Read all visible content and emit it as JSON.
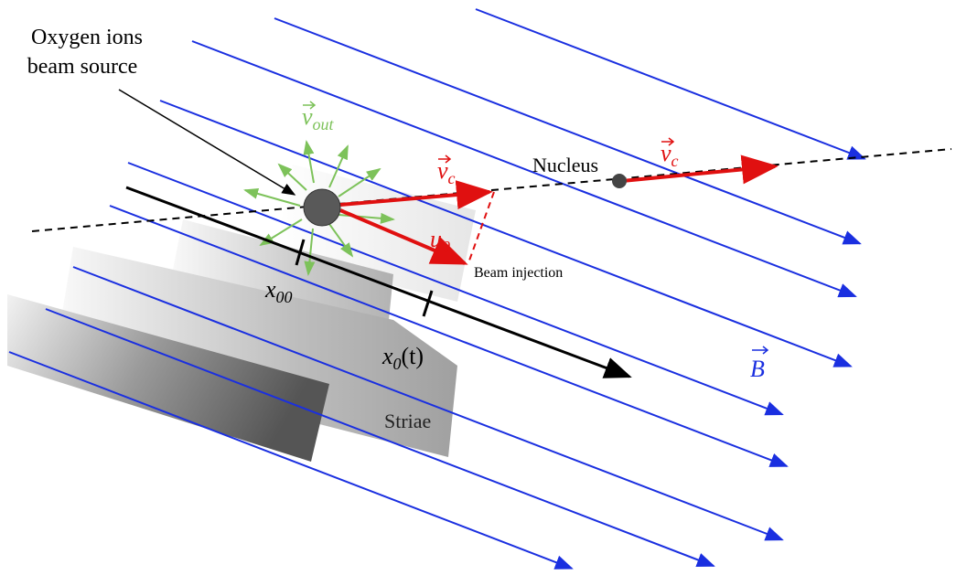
{
  "labels": {
    "source_line1": "Oxygen ions",
    "source_line2": "beam source",
    "v_out": {
      "symbol": "v",
      "subscript": "out"
    },
    "v_c_left": {
      "symbol": "v",
      "subscript": "c"
    },
    "v_c_right": {
      "symbol": "v",
      "subscript": "c"
    },
    "u0": {
      "symbol": "u",
      "subscript": "0"
    },
    "nucleus": "Nucleus",
    "beam_injection": "Beam injection",
    "x00": {
      "symbol": "x",
      "subscript": "00"
    },
    "x0t": {
      "symbol": "x",
      "subscript": "0",
      "suffix": "(t)"
    },
    "B": "B",
    "striae": "Striae"
  }
}
